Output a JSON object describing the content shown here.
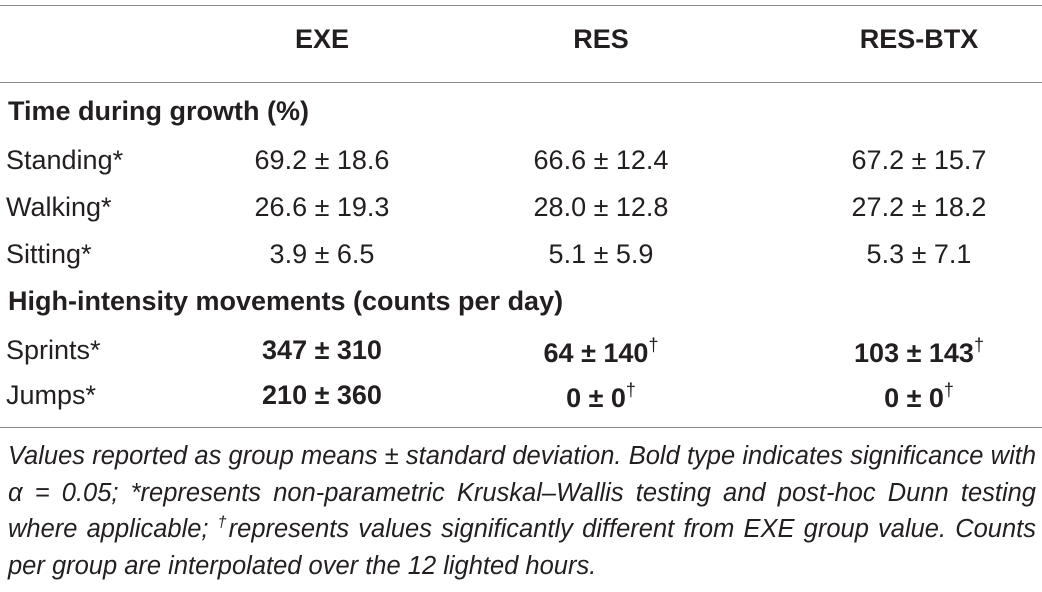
{
  "table": {
    "columns": [
      "EXE",
      "RES",
      "RES-BTX"
    ],
    "sections": [
      {
        "title": "Time during growth (%)",
        "rows": [
          {
            "label": "Standing*",
            "values": [
              "69.2 ± 18.6",
              "66.6 ± 12.4",
              "67.2 ± 15.7"
            ]
          },
          {
            "label": "Walking*",
            "values": [
              "26.6 ± 19.3",
              "28.0 ± 12.8",
              "27.2 ± 18.2"
            ]
          },
          {
            "label": "Sitting*",
            "values": [
              "3.9 ± 6.5",
              "5.1 ± 5.9",
              "5.3 ± 7.1"
            ]
          }
        ]
      },
      {
        "title": "High-intensity movements (counts per day)",
        "rows": [
          {
            "label": "Sprints*",
            "values": [
              "347 ± 310",
              "64 ± 140",
              "103 ± 143"
            ],
            "marks": [
              "",
              "†",
              "†"
            ]
          },
          {
            "label": "Jumps*",
            "values": [
              "210 ± 360",
              "0 ± 0",
              "0 ± 0"
            ],
            "marks": [
              "",
              "†",
              "†"
            ]
          }
        ]
      }
    ]
  },
  "footnote": {
    "part1": "Values reported as group means ± standard deviation. Bold type indicates significance with α = 0.05; *represents non-parametric Kruskal–Wallis testing and post-hoc Dunn testing where applicable; ",
    "dagger": "†",
    "part2": "represents values significantly different from EXE group value. Counts per group are interpolated over the 12 lighted hours."
  }
}
